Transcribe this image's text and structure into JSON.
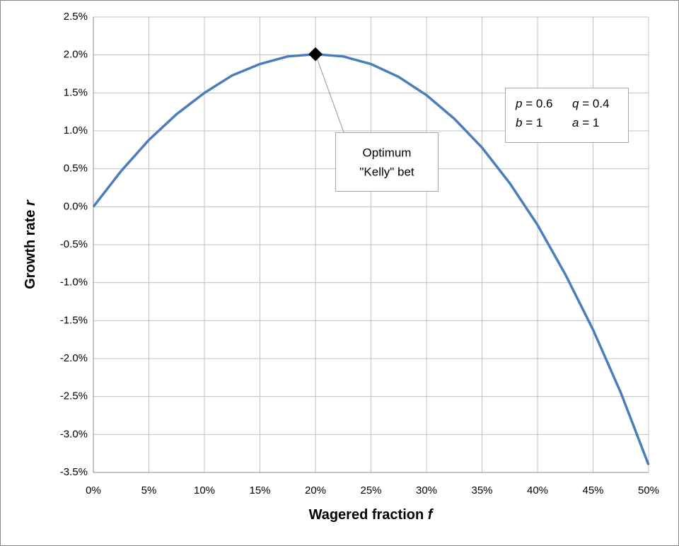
{
  "chart_data": {
    "type": "line",
    "x_label": "Wagered fraction",
    "x_label_var": "f",
    "y_label": "Growth rate",
    "y_label_var": "r",
    "x": [
      0,
      2.5,
      5,
      7.5,
      10,
      12.5,
      15,
      17.5,
      20,
      22.5,
      25,
      27.5,
      30,
      32.5,
      35,
      37.5,
      40,
      42.5,
      45,
      47.5,
      50
    ],
    "series": [
      {
        "color": "#4a7ebb",
        "values": [
          0,
          0.47,
          0.88,
          1.22,
          1.5,
          1.73,
          1.88,
          1.98,
          2.01,
          1.98,
          1.88,
          1.71,
          1.47,
          1.16,
          0.78,
          0.31,
          -0.24,
          -0.89,
          -1.62,
          -2.45,
          -3.4
        ]
      }
    ],
    "optimum": {
      "x": 20,
      "y": 2.01,
      "color": "#000000"
    },
    "annotation": [
      "Optimum",
      "\"Kelly\" bet"
    ],
    "parameters": [
      [
        {
          "symbol": "p",
          "text": "= 0.6"
        },
        {
          "symbol": "q",
          "text": "= 0.4"
        }
      ],
      [
        {
          "symbol": "b",
          "text": "= 1"
        },
        {
          "symbol": "a",
          "text": "= 1"
        }
      ]
    ],
    "xlim": [
      0,
      50
    ],
    "xticks": [
      {
        "value": 0,
        "label": "0%"
      },
      {
        "value": 5,
        "label": "5%"
      },
      {
        "value": 10,
        "label": "10%"
      },
      {
        "value": 15,
        "label": "15%"
      },
      {
        "value": 20,
        "label": "20%"
      },
      {
        "value": 25,
        "label": "25%"
      },
      {
        "value": 30,
        "label": "30%"
      },
      {
        "value": 35,
        "label": "35%"
      },
      {
        "value": 40,
        "label": "40%"
      },
      {
        "value": 45,
        "label": "45%"
      },
      {
        "value": 50,
        "label": "50%"
      }
    ],
    "ylim": [
      -3.5,
      2.5
    ],
    "yticks": [
      {
        "value": -3.5,
        "label": "-3.5%"
      },
      {
        "value": -3,
        "label": "-3.0%"
      },
      {
        "value": -2.5,
        "label": "-2.5%"
      },
      {
        "value": -2,
        "label": "-2.0%"
      },
      {
        "value": -1.5,
        "label": "-1.5%"
      },
      {
        "value": -1,
        "label": "-1.0%"
      },
      {
        "value": -0.5,
        "label": "-0.5%"
      },
      {
        "value": 0,
        "label": "0.0%"
      },
      {
        "value": 0.5,
        "label": "0.5%"
      },
      {
        "value": 1,
        "label": "1.0%"
      },
      {
        "value": 1.5,
        "label": "1.5%"
      },
      {
        "value": 2,
        "label": "2.0%"
      },
      {
        "value": 2.5,
        "label": "2.5%"
      }
    ],
    "grid": true
  }
}
